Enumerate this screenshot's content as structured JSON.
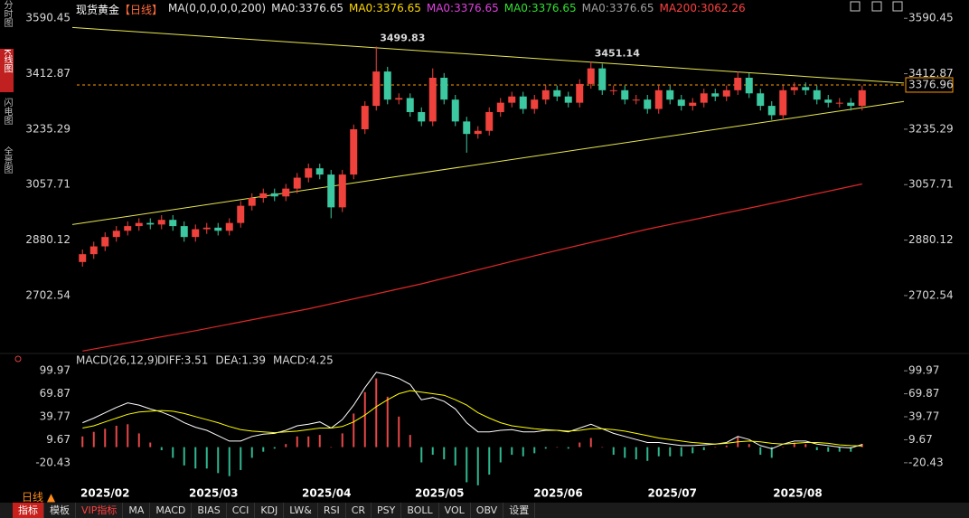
{
  "header": {
    "symbol": "现货黄金",
    "period": "【日线】",
    "indicator": "MA(0,0,0,0,0,200)",
    "ma_labels": [
      {
        "text": "MA0:3376.65",
        "color": "#e6e6e6"
      },
      {
        "text": "MA0:3376.65",
        "color": "#ffd800"
      },
      {
        "text": "MA0:3376.65",
        "color": "#e040e0"
      },
      {
        "text": "MA0:3376.65",
        "color": "#30e030"
      },
      {
        "text": "MA0:3376.65",
        "color": "#a0a0a0"
      },
      {
        "text": "MA200:3062.26",
        "color": "#ff4040"
      }
    ]
  },
  "sidebar": [
    "分时图",
    "K线图",
    "闪电图",
    "全景图"
  ],
  "period_selector": "日线 ▲",
  "toolbar": [
    "指标",
    "模板",
    "VIP指标",
    "MA",
    "MACD",
    "BIAS",
    "CCI",
    "KDJ",
    "LW&",
    "RSI",
    "CR",
    "PSY",
    "BOLL",
    "VOL",
    "OBV",
    "设置"
  ],
  "chart_data": [
    {
      "type": "candlestick",
      "xlim": [
        -0.5,
        72.7
      ],
      "ylim": [
        2520,
        3620
      ],
      "yticks": [
        2702.54,
        2880.12,
        3057.71,
        3235.29,
        3412.87,
        3590.45
      ],
      "up_color": "#f0423c",
      "down_color": "#3cc8a0",
      "open": [
        2810,
        2835,
        2860,
        2890,
        2910,
        2925,
        2935,
        2930,
        2945,
        2925,
        2890,
        2915,
        2920,
        2910,
        2935,
        2990,
        3015,
        3030,
        3020,
        3045,
        3080,
        3110,
        3090,
        2985,
        3090,
        3235,
        3310,
        3420,
        3330,
        3335,
        3290,
        3260,
        3400,
        3330,
        3260,
        3220,
        3230,
        3290,
        3320,
        3340,
        3300,
        3330,
        3360,
        3340,
        3320,
        3380,
        3430,
        3360,
        3360,
        3330,
        3330,
        3300,
        3360,
        3330,
        3310,
        3320,
        3350,
        3340,
        3360,
        3400,
        3350,
        3310,
        3280,
        3360,
        3370,
        3360,
        3330,
        3320,
        3320,
        3310
      ],
      "high": [
        2850,
        2875,
        2905,
        2925,
        2940,
        2950,
        2950,
        2960,
        2960,
        2940,
        2930,
        2935,
        2935,
        2950,
        3005,
        3030,
        3045,
        3045,
        3060,
        3095,
        3125,
        3125,
        3105,
        3105,
        3250,
        3325,
        3499.83,
        3435,
        3350,
        3350,
        3305,
        3430,
        3415,
        3345,
        3275,
        3245,
        3305,
        3335,
        3355,
        3355,
        3345,
        3375,
        3375,
        3355,
        3395,
        3451.14,
        3445,
        3375,
        3375,
        3345,
        3345,
        3375,
        3375,
        3345,
        3335,
        3365,
        3365,
        3375,
        3420,
        3415,
        3365,
        3325,
        3375,
        3385,
        3385,
        3375,
        3345,
        3335,
        3335,
        3375
      ],
      "low": [
        2795,
        2820,
        2845,
        2875,
        2895,
        2910,
        2915,
        2915,
        2910,
        2875,
        2875,
        2900,
        2895,
        2895,
        2920,
        2975,
        3000,
        3005,
        3005,
        3030,
        3065,
        3075,
        2950,
        2970,
        3075,
        3220,
        3295,
        3315,
        3315,
        3275,
        3245,
        3245,
        3315,
        3245,
        3160,
        3205,
        3215,
        3275,
        3305,
        3285,
        3285,
        3315,
        3325,
        3305,
        3305,
        3365,
        3345,
        3345,
        3315,
        3315,
        3285,
        3285,
        3315,
        3295,
        3295,
        3305,
        3325,
        3325,
        3345,
        3335,
        3295,
        3265,
        3265,
        3345,
        3345,
        3315,
        3305,
        3305,
        3295,
        3295
      ],
      "close": [
        2835,
        2860,
        2890,
        2910,
        2925,
        2935,
        2930,
        2945,
        2925,
        2890,
        2915,
        2920,
        2910,
        2935,
        2990,
        3015,
        3030,
        3020,
        3045,
        3080,
        3110,
        3090,
        2985,
        3090,
        3235,
        3310,
        3420,
        3330,
        3335,
        3290,
        3260,
        3400,
        3330,
        3260,
        3220,
        3230,
        3290,
        3320,
        3340,
        3300,
        3330,
        3360,
        3340,
        3320,
        3380,
        3430,
        3360,
        3360,
        3330,
        3330,
        3300,
        3360,
        3330,
        3310,
        3320,
        3350,
        3340,
        3360,
        3400,
        3350,
        3310,
        3280,
        3360,
        3370,
        3360,
        3330,
        3320,
        3320,
        3310,
        3360
      ],
      "annotations": [
        {
          "x": 26,
          "y": 3499.83,
          "color": "#ff5a5a"
        },
        {
          "x": 45,
          "y": 3451.14,
          "color": "#ff5a5a"
        }
      ],
      "lines": [
        {
          "color": "#e02828",
          "x": [
            0,
            10,
            20,
            30,
            40,
            50,
            60,
            69
          ],
          "values": [
            2525,
            2590,
            2660,
            2740,
            2830,
            2915,
            2990,
            3060
          ]
        }
      ],
      "trendlines": [
        {
          "color": "#e8e850",
          "x": [
            -0.9,
            72.7
          ],
          "values": [
            3561,
            3383
          ]
        },
        {
          "color": "#e8e850",
          "x": [
            -0.9,
            72.7
          ],
          "values": [
            2930,
            3324
          ]
        }
      ],
      "last_price": 3376.96,
      "last_price_color": "#ff9a00"
    },
    {
      "type": "macd",
      "title": "MACD(26,12,9)",
      "xlim": [
        -0.5,
        72.7
      ],
      "ylim": [
        -49,
        112
      ],
      "yticks": [
        -20.43,
        9.67,
        39.77,
        69.87,
        99.97
      ],
      "xticks": [
        {
          "value": 2,
          "label": "2025/02"
        },
        {
          "value": 11.6,
          "label": "2025/03"
        },
        {
          "value": 21.6,
          "label": "2025/04"
        },
        {
          "value": 31.6,
          "label": "2025/05"
        },
        {
          "value": 42.1,
          "label": "2025/06"
        },
        {
          "value": 52.2,
          "label": "2025/07"
        },
        {
          "value": 63.3,
          "label": "2025/08"
        }
      ],
      "series": [
        {
          "name": "DIFF:3.51",
          "color": "#ffffff",
          "type": "line",
          "values": [
            32,
            38,
            45,
            52,
            58,
            55,
            50,
            46,
            40,
            32,
            26,
            22,
            15,
            8,
            8,
            14,
            17,
            18,
            22,
            28,
            30,
            33,
            25,
            36,
            55,
            78,
            98,
            95,
            90,
            82,
            62,
            65,
            60,
            50,
            32,
            20,
            20,
            22,
            23,
            20,
            20,
            22,
            22,
            20,
            25,
            30,
            24,
            18,
            14,
            10,
            6,
            6,
            4,
            2,
            2,
            3,
            4,
            6,
            14,
            10,
            2,
            -2,
            4,
            8,
            8,
            4,
            2,
            0,
            -1,
            3.51
          ]
        },
        {
          "name": "DEA:1.39",
          "color": "#ffff00",
          "type": "line",
          "values": [
            25,
            28,
            33,
            38,
            43,
            46,
            47,
            48,
            47,
            44,
            40,
            36,
            32,
            27,
            23,
            21,
            20,
            19,
            20,
            21,
            23,
            25,
            25,
            27,
            33,
            42,
            53,
            62,
            70,
            74,
            72,
            70,
            68,
            62,
            55,
            45,
            38,
            32,
            28,
            26,
            24,
            23,
            22,
            21,
            22,
            24,
            24,
            23,
            21,
            18,
            15,
            12,
            10,
            8,
            6,
            5,
            4,
            5,
            7,
            8,
            7,
            5,
            4,
            5,
            6,
            6,
            5,
            3,
            2,
            1.39
          ]
        },
        {
          "name": "MACD:4.25",
          "color": "#ff40ff",
          "type": "bar",
          "up_color": "#e84848",
          "down_color": "#2fb890",
          "values": [
            14,
            20,
            24,
            28,
            30,
            18,
            6,
            -4,
            -14,
            -24,
            -28,
            -28,
            -34,
            -38,
            -30,
            -14,
            -6,
            -2,
            4,
            14,
            14,
            16,
            0,
            18,
            44,
            72,
            90,
            66,
            40,
            16,
            -20,
            -10,
            -16,
            -24,
            -46,
            -50,
            -36,
            -20,
            -10,
            -12,
            -8,
            -2,
            0,
            -2,
            6,
            12,
            0,
            -10,
            -14,
            -16,
            -18,
            -12,
            -12,
            -12,
            -8,
            -4,
            0,
            2,
            14,
            4,
            -10,
            -14,
            0,
            6,
            4,
            -4,
            -6,
            -6,
            -6,
            4.25
          ]
        }
      ]
    }
  ]
}
